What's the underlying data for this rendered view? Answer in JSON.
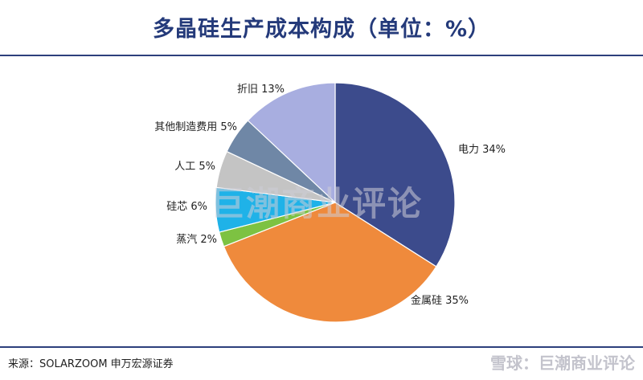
{
  "header": {
    "title": "多晶硅生产成本构成（单位：%）"
  },
  "chart_data": {
    "type": "pie",
    "title": "多晶硅生产成本构成（单位：%）",
    "slices": [
      {
        "label": "电力",
        "value": 34,
        "value_label": "34%",
        "color": "#3c4b8c"
      },
      {
        "label": "金属硅",
        "value": 35,
        "value_label": "35%",
        "color": "#ef8a3c"
      },
      {
        "label": "蒸汽",
        "value": 2,
        "value_label": "2%",
        "color": "#7dc242"
      },
      {
        "label": "硅芯",
        "value": 6,
        "value_label": "6%",
        "color": "#1fb2e8"
      },
      {
        "label": "人工",
        "value": 5,
        "value_label": "5%",
        "color": "#c4c4c4"
      },
      {
        "label": "其他制造费用",
        "value": 5,
        "value_label": "5%",
        "color": "#6f87a6"
      },
      {
        "label": "折旧",
        "value": 13,
        "value_label": "13%",
        "color": "#a8aee0"
      }
    ],
    "legend": "none",
    "label_placement": "outside"
  },
  "watermark": {
    "center_text": "巨潮商业评论",
    "footer_text": "雪球：巨潮商业评论"
  },
  "footer": {
    "source": "来源：SOLARZOOM  申万宏源证券"
  }
}
